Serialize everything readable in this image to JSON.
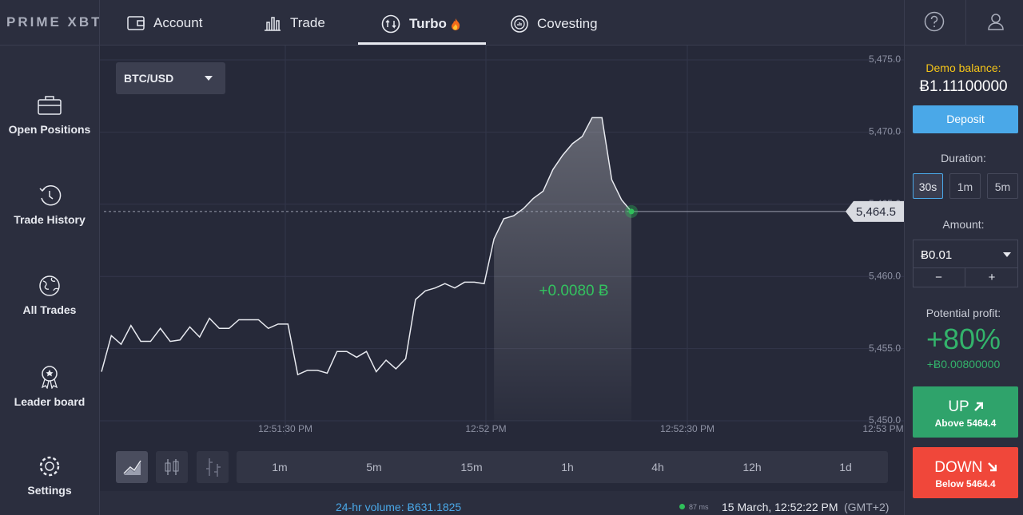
{
  "header": {
    "logo": "PRIME XBT",
    "tabs": [
      "Account",
      "Trade",
      "Turbo",
      "Covesting"
    ]
  },
  "sidebar": {
    "items": [
      "Open Positions",
      "Trade History",
      "All Trades",
      "Leader board",
      "Settings"
    ]
  },
  "chart": {
    "type": "line",
    "pair": "BTC/USD",
    "values": [
      5453.4,
      5455.9,
      5455.3,
      5456.6,
      5455.5,
      5455.5,
      5456.4,
      5455.5,
      5455.6,
      5456.5,
      5455.8,
      5457.1,
      5456.4,
      5456.4,
      5457.0,
      5457.0,
      5457.0,
      5456.4,
      5456.7,
      5456.7,
      5453.2,
      5453.5,
      5453.5,
      5453.3,
      5454.8,
      5454.8,
      5454.4,
      5454.8,
      5453.4,
      5454.2,
      5453.6,
      5454.3,
      5458.4,
      5459.0,
      5459.2,
      5459.5,
      5459.2,
      5459.6,
      5459.6,
      5459.5,
      5462.6,
      5464.0,
      5464.2,
      5464.7,
      5465.4,
      5465.9,
      5467.4,
      5468.4,
      5469.2,
      5469.7,
      5471.0,
      5471.0,
      5466.7,
      5465.3,
      5464.5
    ],
    "ylim": [
      5450,
      5475
    ],
    "yticks": [
      {
        "value": 5450,
        "label": "5,450.0"
      },
      {
        "value": 5455,
        "label": "5,455.0"
      },
      {
        "value": 5460,
        "label": "5,460.0"
      },
      {
        "value": 5465,
        "label": "5,465.0"
      },
      {
        "value": 5470,
        "label": "5,470.0"
      },
      {
        "value": 5475,
        "label": "5,475.0"
      }
    ],
    "x_labels": [
      "12:51:30 PM",
      "12:52 PM",
      "12:52:30 PM",
      "12:53 PM"
    ],
    "current_price": {
      "value": 5464.5,
      "label": "5,464.5"
    },
    "profit_label": "+0.0080 Ƀ",
    "timeframes": [
      "1m",
      "5m",
      "15m",
      "1h",
      "4h",
      "12h",
      "1d"
    ]
  },
  "panel": {
    "demo_label": "Demo balance:",
    "balance": "Ƀ1.11100000",
    "deposit": "Deposit",
    "duration_label": "Duration:",
    "durations": [
      "30s",
      "1m",
      "5m"
    ],
    "amount_label": "Amount:",
    "amount": "Ƀ0.01",
    "minus": "−",
    "plus": "+",
    "profit_label": "Potential profit:",
    "profit_pct": "+80%",
    "profit_amount": "+Ƀ0.00800000",
    "up": "UP",
    "up_sub": "Above 5464.4",
    "down": "DOWN",
    "down_sub": "Below 5464.4"
  },
  "footer": {
    "volume": "24-hr volume: Ƀ631.1825",
    "latency": "87 ms",
    "datetime": "15 March, 12:52:22 PM",
    "timezone": "(GMT+2)"
  }
}
